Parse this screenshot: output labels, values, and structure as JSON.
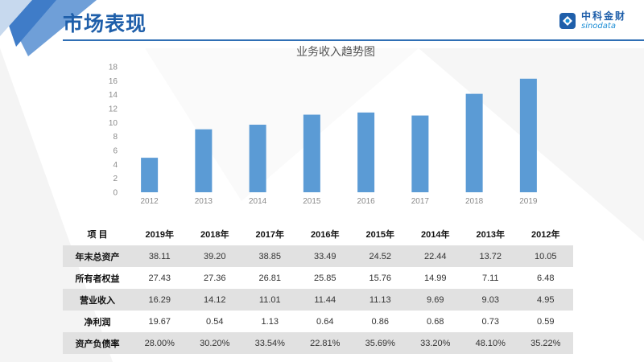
{
  "header": {
    "title": "市场表现",
    "logo_cn": "中科金财",
    "logo_en": "sinodata"
  },
  "colors": {
    "accent": "#1f5faa",
    "bar": "#5b9bd5",
    "table_shade": "#e1e1e1"
  },
  "chart_data": {
    "type": "bar",
    "title": "业务收入趋势图",
    "categories": [
      "2012",
      "2013",
      "2014",
      "2015",
      "2016",
      "2017",
      "2018",
      "2019"
    ],
    "values": [
      4.95,
      9.03,
      9.69,
      11.13,
      11.44,
      11.01,
      14.12,
      16.29
    ],
    "xlabel": "",
    "ylabel": "",
    "ylim": [
      0,
      18
    ],
    "yticks": [
      0,
      2,
      4,
      6,
      8,
      10,
      12,
      14,
      16,
      18
    ],
    "grid": false,
    "legend": "none"
  },
  "table": {
    "header_label": "项   目",
    "columns": [
      "2019年",
      "2018年",
      "2017年",
      "2016年",
      "2015年",
      "2014年",
      "2013年",
      "2012年"
    ],
    "rows": [
      {
        "label": "年末总资产",
        "values": [
          "38.11",
          "39.20",
          "38.85",
          "33.49",
          "24.52",
          "22.44",
          "13.72",
          "10.05"
        ]
      },
      {
        "label": "所有者权益",
        "values": [
          "27.43",
          "27.36",
          "26.81",
          "25.85",
          "15.76",
          "14.99",
          "7.11",
          "6.48"
        ]
      },
      {
        "label": "营业收入",
        "values": [
          "16.29",
          "14.12",
          "11.01",
          "11.44",
          "11.13",
          "9.69",
          "9.03",
          "4.95"
        ]
      },
      {
        "label": "净利润",
        "values": [
          "19.67",
          "0.54",
          "1.13",
          "0.64",
          "0.86",
          "0.68",
          "0.73",
          "0.59"
        ]
      },
      {
        "label": "资产负债率",
        "values": [
          "28.00%",
          "30.20%",
          "33.54%",
          "22.81%",
          "35.69%",
          "33.20%",
          "48.10%",
          "35.22%"
        ]
      }
    ]
  }
}
